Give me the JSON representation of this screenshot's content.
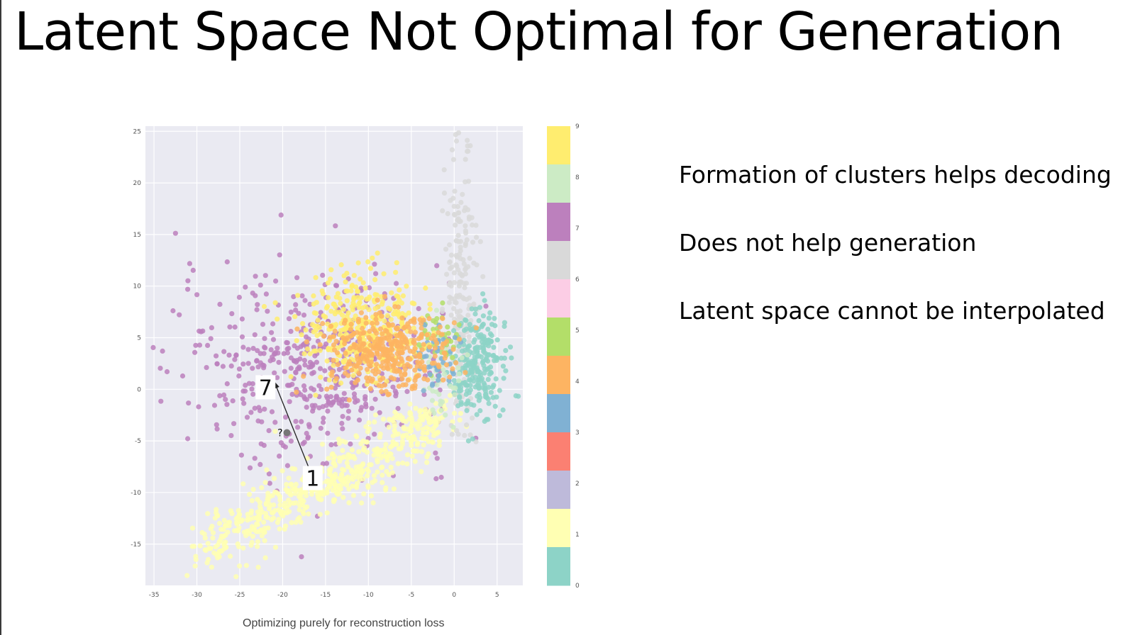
{
  "slide": {
    "title": "Latent Space Not Optimal for Generation",
    "bullets": [
      "Formation of clusters helps decoding",
      "Does not help generation",
      "Latent space cannot be interpolated"
    ],
    "caption": "Optimizing purely for reconstruction loss"
  },
  "chart_data": {
    "type": "scatter",
    "title": "",
    "xlabel": "",
    "ylabel": "",
    "xlim": [
      -36,
      8
    ],
    "ylim": [
      -19,
      25.5
    ],
    "x_ticks": [
      "-35",
      "-30",
      "-25",
      "-20",
      "-15",
      "-10",
      "-5",
      "0",
      "5"
    ],
    "y_ticks": [
      "25",
      "20",
      "15",
      "10",
      "5",
      "0",
      "-5",
      "-10",
      "-15"
    ],
    "grid": true,
    "colorbar": {
      "ticks": [
        "9",
        "8",
        "7",
        "6",
        "5",
        "4",
        "3",
        "2",
        "1",
        "0"
      ],
      "colors": [
        "#ffed6f",
        "#ccebc5",
        "#bc80bd",
        "#d9d9d9",
        "#fccde5",
        "#b3de69",
        "#fdb462",
        "#80b1d3",
        "#fb8072",
        "#bebada",
        "#ffffb3",
        "#8dd3c7"
      ]
    },
    "series": [
      {
        "name": "0",
        "color": "#8dd3c7",
        "center": [
          3,
          2.5
        ],
        "spread": [
          1.6,
          2.5
        ],
        "approx_count": 250
      },
      {
        "name": "1",
        "color": "#ffffb3",
        "center": [
          -12,
          -7
        ],
        "spread": [
          7,
          2.5
        ],
        "approx_count": 600,
        "trend": "diagonal"
      },
      {
        "name": "3",
        "color": "#80b1d3",
        "center": [
          -2,
          3
        ],
        "spread": [
          1.2,
          1.5
        ],
        "approx_count": 40
      },
      {
        "name": "4",
        "color": "#fdb462",
        "center": [
          -8,
          3.5
        ],
        "spread": [
          3.5,
          2
        ],
        "approx_count": 350
      },
      {
        "name": "5",
        "color": "#b3de69",
        "center": [
          -1.5,
          5
        ],
        "spread": [
          1.2,
          1.5
        ],
        "approx_count": 40
      },
      {
        "name": "6",
        "color": "#d9d9d9",
        "center": [
          0.7,
          10
        ],
        "spread": [
          1,
          7
        ],
        "approx_count": 200
      },
      {
        "name": "7",
        "color": "#bc80bd",
        "center": [
          -16,
          2
        ],
        "spread": [
          8,
          4.5
        ],
        "approx_count": 500
      },
      {
        "name": "8",
        "color": "#ccebc5",
        "center": [
          -1.5,
          1
        ],
        "spread": [
          1.2,
          2
        ],
        "approx_count": 40
      },
      {
        "name": "9",
        "color": "#ffed6f",
        "center": [
          -11,
          6
        ],
        "spread": [
          3.5,
          2.5
        ],
        "approx_count": 350
      }
    ],
    "annotations": [
      {
        "text": "7",
        "x": -22,
        "y": 0.2
      },
      {
        "text": "1",
        "x": -16.5,
        "y": -8.6
      },
      {
        "text": "?",
        "x": -20.3,
        "y": -4.2
      }
    ],
    "arrow": {
      "from": [
        -17,
        -7.5
      ],
      "to": [
        -21,
        0.8
      ],
      "midpoint": [
        -19.5,
        -4.2
      ]
    }
  }
}
